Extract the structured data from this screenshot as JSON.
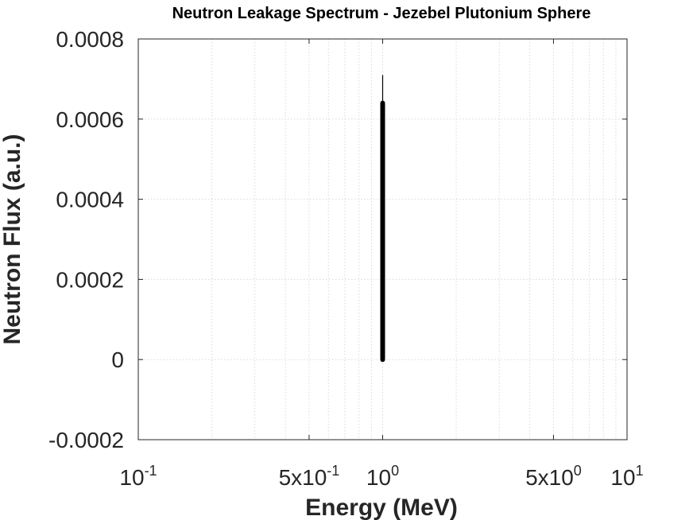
{
  "chart_data": {
    "type": "scatter",
    "title": "Neutron Leakage Spectrum - Jezebel Plutonium Sphere",
    "xlabel": "Energy (MeV)",
    "ylabel": "Neutron Flux (a.u.)",
    "xscale": "log",
    "xlim": [
      0.1,
      10
    ],
    "ylim": [
      -0.0002,
      0.0008
    ],
    "grid": true,
    "x_ticks": [
      {
        "value": 0.1,
        "mantissa": "",
        "base": "10",
        "exp": "-1"
      },
      {
        "value": 0.5,
        "mantissa": "5x",
        "base": "10",
        "exp": "-1"
      },
      {
        "value": 1,
        "mantissa": "",
        "base": "10",
        "exp": "0"
      },
      {
        "value": 5,
        "mantissa": "5x",
        "base": "10",
        "exp": "0"
      },
      {
        "value": 10,
        "mantissa": "",
        "base": "10",
        "exp": "1"
      }
    ],
    "y_ticks": [
      {
        "value": -0.0002,
        "label": "-0.0002"
      },
      {
        "value": 0,
        "label": "0"
      },
      {
        "value": 0.0002,
        "label": "0.0002"
      },
      {
        "value": 0.0004,
        "label": "0.0004"
      },
      {
        "value": 0.0006,
        "label": "0.0006"
      },
      {
        "value": 0.0008,
        "label": "0.0008"
      }
    ],
    "series": [
      {
        "color": "#000000",
        "x": [
          1,
          1,
          1,
          1,
          1,
          1,
          1,
          1,
          1,
          1,
          1,
          1,
          1,
          1,
          1,
          1,
          1,
          1,
          1,
          1
        ],
        "y": [
          0.0,
          2e-05,
          5e-05,
          8e-05,
          0.00012,
          0.00016,
          0.0002,
          0.00024,
          0.00028,
          0.00032,
          0.00036,
          0.0004,
          0.00043,
          0.00046,
          0.0005,
          0.00053,
          0.00056,
          0.00059,
          0.00062,
          0.00064
        ]
      }
    ],
    "line_segment": {
      "x": 1,
      "y_from": 0,
      "y_to": 0.00071
    }
  }
}
